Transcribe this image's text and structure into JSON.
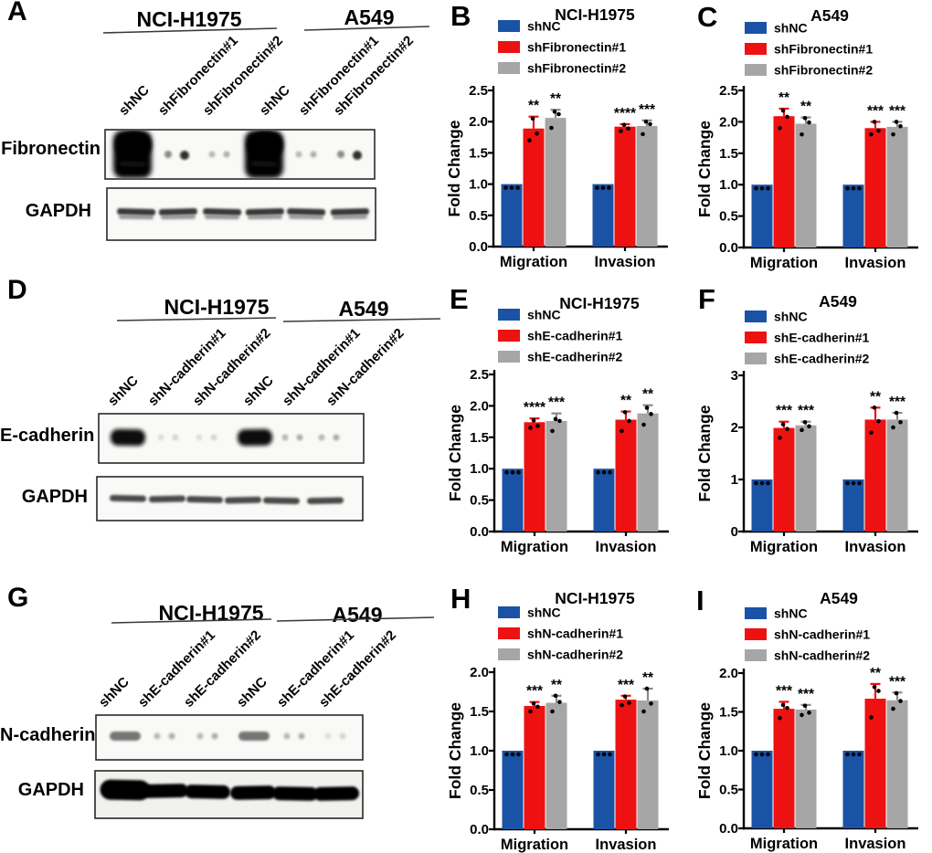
{
  "figure": {
    "panels": [
      {
        "label": "A",
        "cell_lines": [
          "NCI-H1975",
          "A549"
        ],
        "lanes": [
          "shNC",
          "shFibronectin#1",
          "shFibronectin#2",
          "shNC",
          "shFibronectin#1",
          "shFibronectin#2"
        ],
        "rows": [
          {
            "protein": "Fibronectin",
            "pattern": [
              "blob",
              "dots-weak",
              "dots-faint",
              "blob",
              "dots-faint",
              "dots-weak"
            ]
          },
          {
            "protein": "GAPDH",
            "pattern": [
              "doublet",
              "doublet",
              "doublet",
              "doublet",
              "doublet",
              "doublet"
            ]
          }
        ]
      },
      {
        "label": "D",
        "cell_lines": [
          "NCI-H1975",
          "A549"
        ],
        "lanes": [
          "shNC",
          "shN-cadherin#1",
          "shN-cadherin#2",
          "shNC",
          "shN-cadherin#1",
          "shN-cadherin#2"
        ],
        "rows": [
          {
            "protein": "E-cadherin",
            "pattern": [
              "band-strong",
              "dots-vfaint",
              "dots-vfaint",
              "band-strong",
              "dots-faint",
              "dots-faint"
            ]
          },
          {
            "protein": "GAPDH",
            "pattern": [
              "thin",
              "thin",
              "thin",
              "thin",
              "thin",
              "thin"
            ]
          }
        ]
      },
      {
        "label": "G",
        "cell_lines": [
          "NCI-H1975",
          "A549"
        ],
        "lanes": [
          "shNC",
          "shE-cadherin#1",
          "shE-cadherin#2",
          "shNC",
          "shE-cadherin#1",
          "shE-cadherin#2"
        ],
        "rows": [
          {
            "protein": "N-cadherin",
            "pattern": [
              "band-medium",
              "dots-faint",
              "dots-faint",
              "band-medium",
              "dots-faint",
              "dots-vfaint"
            ]
          },
          {
            "protein": "GAPDH",
            "pattern": [
              "thick-first",
              "thick",
              "thick",
              "thick",
              "thick",
              "thick"
            ]
          }
        ]
      }
    ]
  },
  "chart_data": [
    {
      "id": "B",
      "panel_label": "B",
      "type": "bar",
      "title": "NCI-H1975",
      "ylabel": "Fold Change",
      "ylim": [
        0,
        2.5
      ],
      "ytick": 0.5,
      "categories": [
        "Migration",
        "Invasion"
      ],
      "series": [
        {
          "name": "shNC",
          "color": "blue",
          "values": [
            1.0,
            1.0
          ],
          "errors": [
            0,
            0
          ],
          "stars": [
            "",
            ""
          ],
          "dots": [
            [
              1.0,
              1.0,
              1.0
            ],
            [
              1.0,
              1.0,
              1.0
            ]
          ]
        },
        {
          "name": "shFibronectin#1",
          "color": "red",
          "values": [
            1.89,
            1.92
          ],
          "errors": [
            0.19,
            0.04
          ],
          "stars": [
            "**",
            "****"
          ],
          "dots": [
            [
              1.7,
              1.81,
              2.05
            ],
            [
              1.85,
              1.89,
              1.95
            ]
          ]
        },
        {
          "name": "shFibronectin#2",
          "color": "gray",
          "values": [
            2.06,
            1.93
          ],
          "errors": [
            0.13,
            0.09
          ],
          "stars": [
            "**",
            "***"
          ],
          "dots": [
            [
              1.9,
              2.12,
              2.16
            ],
            [
              1.8,
              1.96,
              2.0
            ]
          ]
        }
      ]
    },
    {
      "id": "C",
      "panel_label": "C",
      "type": "bar",
      "title": "A549",
      "ylabel": "Fold Change",
      "ylim": [
        0,
        2.5
      ],
      "ytick": 0.5,
      "categories": [
        "Migration",
        "Invasion"
      ],
      "series": [
        {
          "name": "shNC",
          "color": "blue",
          "values": [
            1.0,
            1.0
          ],
          "errors": [
            0,
            0
          ],
          "stars": [
            "",
            ""
          ],
          "dots": [
            [
              1.0,
              1.0,
              1.0
            ],
            [
              1.0,
              1.0,
              1.0
            ]
          ]
        },
        {
          "name": "shFibronectin#1",
          "color": "red",
          "values": [
            2.09,
            1.9
          ],
          "errors": [
            0.12,
            0.1
          ],
          "stars": [
            "**",
            "***"
          ],
          "dots": [
            [
              1.9,
              2.08,
              2.18
            ],
            [
              1.8,
              1.86,
              2.0
            ]
          ]
        },
        {
          "name": "shFibronectin#2",
          "color": "gray",
          "values": [
            1.97,
            1.92
          ],
          "errors": [
            0.1,
            0.08
          ],
          "stars": [
            "**",
            "***"
          ],
          "dots": [
            [
              1.8,
              1.99,
              2.06
            ],
            [
              1.8,
              1.93,
              2.0
            ]
          ]
        }
      ]
    },
    {
      "id": "E",
      "panel_label": "E",
      "type": "bar",
      "title": "NCI-H1975",
      "ylabel": "Fold Change",
      "ylim": [
        0,
        2.5
      ],
      "ytick": 0.5,
      "categories": [
        "Migration",
        "Invasion"
      ],
      "series": [
        {
          "name": "shNC",
          "color": "blue",
          "values": [
            1.0,
            1.0
          ],
          "errors": [
            0,
            0
          ],
          "stars": [
            "",
            ""
          ],
          "dots": [
            [
              1.0,
              1.0,
              1.0
            ],
            [
              1.0,
              1.0,
              1.0
            ]
          ]
        },
        {
          "name": "shE-cadherin#1",
          "color": "red",
          "values": [
            1.74,
            1.78
          ],
          "errors": [
            0.06,
            0.13
          ],
          "stars": [
            "****",
            "**"
          ],
          "dots": [
            [
              1.65,
              1.68,
              1.77
            ],
            [
              1.6,
              1.76,
              1.9
            ]
          ]
        },
        {
          "name": "shE-cadherin#2",
          "color": "gray",
          "values": [
            1.76,
            1.88
          ],
          "errors": [
            0.12,
            0.13
          ],
          "stars": [
            "***",
            "**"
          ],
          "dots": [
            [
              1.6,
              1.76,
              1.79
            ],
            [
              1.7,
              1.87,
              1.97
            ]
          ]
        }
      ]
    },
    {
      "id": "F",
      "panel_label": "F",
      "type": "bar",
      "title": "A549",
      "ylabel": "Fold Change",
      "ylim": [
        0,
        3
      ],
      "ytick": 1,
      "categories": [
        "Migration",
        "Invasion"
      ],
      "series": [
        {
          "name": "shNC",
          "color": "blue",
          "values": [
            1.0,
            1.0
          ],
          "errors": [
            0,
            0
          ],
          "stars": [
            "",
            ""
          ],
          "dots": [
            [
              1.0,
              1.0,
              1.0
            ],
            [
              1.0,
              1.0,
              1.0
            ]
          ]
        },
        {
          "name": "shE-cadherin#1",
          "color": "red",
          "values": [
            1.99,
            2.15
          ],
          "errors": [
            0.12,
            0.23
          ],
          "stars": [
            "***",
            "**"
          ],
          "dots": [
            [
              1.8,
              1.97,
              2.06
            ],
            [
              1.9,
              2.12,
              2.38
            ]
          ]
        },
        {
          "name": "shE-cadherin#2",
          "color": "gray",
          "values": [
            2.04,
            2.15
          ],
          "errors": [
            0.07,
            0.13
          ],
          "stars": [
            "***",
            "***"
          ],
          "dots": [
            [
              1.95,
              2.02,
              2.1
            ],
            [
              2.0,
              2.1,
              2.28
            ]
          ]
        }
      ]
    },
    {
      "id": "H",
      "panel_label": "H",
      "type": "bar",
      "title": "NCI-H1975",
      "ylabel": "Fold Change",
      "ylim": [
        0,
        2.0
      ],
      "ytick": 0.5,
      "categories": [
        "Migration",
        "Invasion"
      ],
      "series": [
        {
          "name": "shNC",
          "color": "blue",
          "values": [
            1.0,
            1.0
          ],
          "errors": [
            0,
            0
          ],
          "stars": [
            "",
            ""
          ],
          "dots": [
            [
              1.0,
              1.0,
              1.0
            ],
            [
              1.0,
              1.0,
              1.0
            ]
          ]
        },
        {
          "name": "shN-cadherin#1",
          "color": "red",
          "values": [
            1.57,
            1.65
          ],
          "errors": [
            0.05,
            0.05
          ],
          "stars": [
            "***",
            "***"
          ],
          "dots": [
            [
              1.5,
              1.56,
              1.6
            ],
            [
              1.58,
              1.61,
              1.69
            ]
          ]
        },
        {
          "name": "shN-cadherin#2",
          "color": "gray",
          "values": [
            1.61,
            1.64
          ],
          "errors": [
            0.09,
            0.15
          ],
          "stars": [
            "**",
            "**"
          ],
          "dots": [
            [
              1.5,
              1.62,
              1.7
            ],
            [
              1.5,
              1.6,
              1.79
            ]
          ]
        }
      ]
    },
    {
      "id": "I",
      "panel_label": "I",
      "type": "bar",
      "title": "A549",
      "ylabel": "Fold Change",
      "ylim": [
        0,
        2.0
      ],
      "ytick": 0.5,
      "categories": [
        "Migration",
        "Invasion"
      ],
      "series": [
        {
          "name": "shNC",
          "color": "blue",
          "values": [
            1.0,
            1.0
          ],
          "errors": [
            0,
            0
          ],
          "stars": [
            "",
            ""
          ],
          "dots": [
            [
              1.0,
              1.0,
              1.0
            ],
            [
              1.0,
              1.0,
              1.0
            ]
          ]
        },
        {
          "name": "shN-cadherin#1",
          "color": "red",
          "values": [
            1.54,
            1.67
          ],
          "errors": [
            0.09,
            0.19
          ],
          "stars": [
            "***",
            "**"
          ],
          "dots": [
            [
              1.42,
              1.55,
              1.59
            ],
            [
              1.43,
              1.77,
              1.82
            ]
          ]
        },
        {
          "name": "shN-cadherin#2",
          "color": "gray",
          "values": [
            1.53,
            1.65
          ],
          "errors": [
            0.06,
            0.1
          ],
          "stars": [
            "***",
            "***"
          ],
          "dots": [
            [
              1.46,
              1.49,
              1.58
            ],
            [
              1.54,
              1.64,
              1.74
            ]
          ]
        }
      ]
    }
  ],
  "colors": {
    "blue": "#1a52a5",
    "red": "#ee1111",
    "gray": "#a6a6a6",
    "axis": "#000000",
    "error_gray": "#8a8a8a"
  }
}
